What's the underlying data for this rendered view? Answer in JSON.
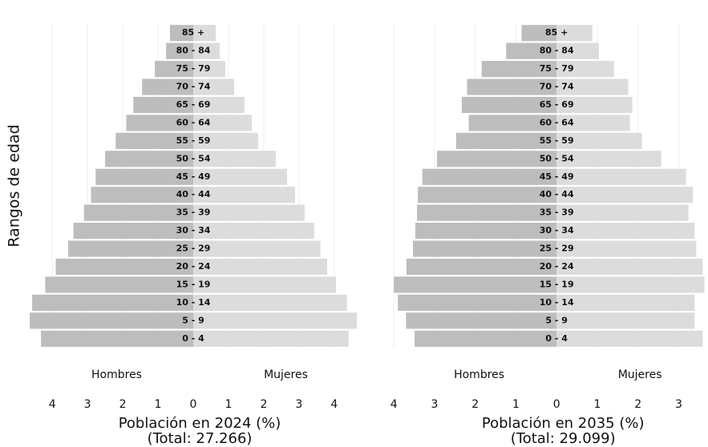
{
  "chart_data": [
    {
      "type": "pyramid",
      "ylabel": "Rangos de edad",
      "xlabel": "Población en 2024 (%)",
      "subtitle": "(Total: 27.266)",
      "categories": [
        "0 - 4",
        "5 - 9",
        "10 - 14",
        "15 - 19",
        "20 - 24",
        "25 - 29",
        "30 - 34",
        "35 - 39",
        "40 - 44",
        "45 - 49",
        "50 - 54",
        "55 - 59",
        "60 - 64",
        "65 - 69",
        "70 - 74",
        "75 - 79",
        "80 - 84",
        "85 +"
      ],
      "series": [
        {
          "name": "Hombres",
          "color": "#bdbdbd",
          "values": [
            -4.32,
            -4.64,
            -4.57,
            -4.2,
            -3.9,
            -3.55,
            -3.4,
            -3.1,
            -2.9,
            -2.77,
            -2.5,
            -2.2,
            -1.9,
            -1.7,
            -1.45,
            -1.09,
            -0.77,
            -0.66
          ]
        },
        {
          "name": "Mujeres",
          "color": "#dcdcdc",
          "values": [
            4.41,
            4.64,
            4.36,
            4.05,
            3.8,
            3.61,
            3.43,
            3.16,
            2.89,
            2.66,
            2.34,
            1.84,
            1.66,
            1.45,
            1.16,
            0.91,
            0.75,
            0.64
          ]
        }
      ],
      "xlim": [
        -4.8,
        4.8
      ],
      "xticks": [
        {
          "value": -4,
          "label": "4"
        },
        {
          "value": -3,
          "label": "3"
        },
        {
          "value": -2,
          "label": "2"
        },
        {
          "value": -1,
          "label": "1"
        },
        0,
        1,
        2,
        3,
        4
      ],
      "grid": true
    },
    {
      "type": "pyramid",
      "xlabel": "Población en 2035 (%)",
      "subtitle": "(Total: 29.099)",
      "categories": [
        "0 - 4",
        "5 - 9",
        "10 - 14",
        "15 - 19",
        "20 - 24",
        "25 - 29",
        "30 - 34",
        "35 - 39",
        "40 - 44",
        "45 - 49",
        "50 - 54",
        "55 - 59",
        "60 - 64",
        "65 - 69",
        "70 - 74",
        "75 - 79",
        "80 - 84",
        "85 +"
      ],
      "series": [
        {
          "name": "Hombres",
          "color": "#bdbdbd",
          "values": [
            -3.49,
            -3.7,
            -3.9,
            -4.0,
            -3.69,
            -3.53,
            -3.47,
            -3.43,
            -3.41,
            -3.3,
            -2.94,
            -2.47,
            -2.16,
            -2.33,
            -2.2,
            -1.84,
            -1.24,
            -0.86
          ]
        },
        {
          "name": "Mujeres",
          "color": "#dcdcdc",
          "values": [
            3.59,
            3.39,
            3.39,
            3.63,
            3.59,
            3.43,
            3.39,
            3.24,
            3.35,
            3.18,
            2.57,
            2.1,
            1.8,
            1.86,
            1.76,
            1.41,
            1.04,
            0.88
          ]
        }
      ],
      "xlim": [
        -4.2,
        3.7
      ],
      "xticks": [
        {
          "value": -4,
          "label": "4"
        },
        {
          "value": -3,
          "label": "3"
        },
        {
          "value": -2,
          "label": "2"
        },
        {
          "value": -1,
          "label": "1"
        },
        0,
        1,
        2,
        3
      ],
      "grid": true
    }
  ]
}
